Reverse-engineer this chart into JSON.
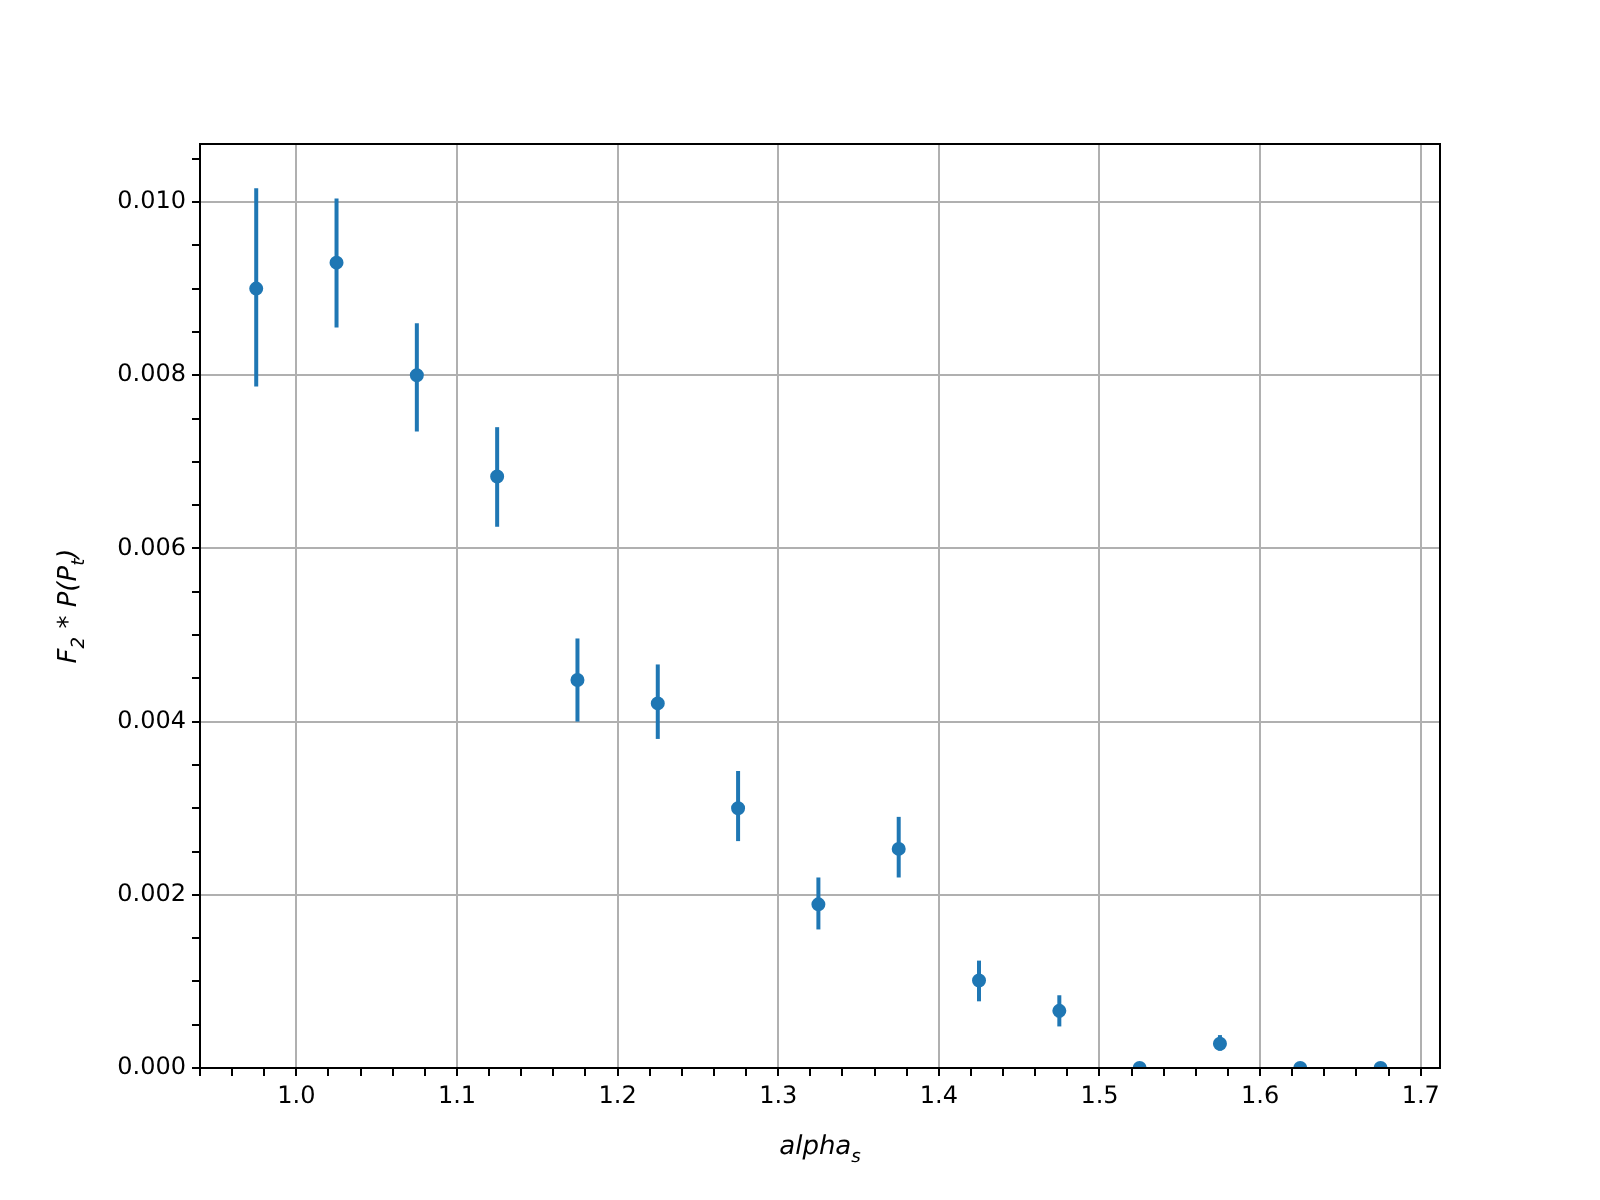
{
  "chart_data": {
    "type": "scatter",
    "xlabel": "alpha$_{s}$",
    "ylabel": "F$_{2}$ * P(P$_{t}$)",
    "x": [
      0.975,
      1.025,
      1.075,
      1.125,
      1.175,
      1.225,
      1.275,
      1.325,
      1.375,
      1.425,
      1.475,
      1.525,
      1.575,
      1.625,
      1.675
    ],
    "series": [
      {
        "color": "#1f77b4",
        "values": [
          0.009,
          0.0093,
          0.008,
          0.00683,
          0.00448,
          0.00421,
          0.003,
          0.00189,
          0.00253,
          0.00101,
          0.00066,
          0.0,
          0.00028,
          0.0,
          0.0
        ],
        "errors": [
          [
            0.00787,
            0.01016
          ],
          [
            0.00855,
            0.01004
          ],
          [
            0.00735,
            0.0086
          ],
          [
            0.00625,
            0.0074
          ],
          [
            0.004,
            0.00496
          ],
          [
            0.0038,
            0.00466
          ],
          [
            0.00262,
            0.00343
          ],
          [
            0.0016,
            0.0022
          ],
          [
            0.0022,
            0.0029
          ],
          [
            0.00077,
            0.00124
          ],
          [
            0.00048,
            0.00084
          ],
          null,
          [
            0.0002,
            0.00038
          ],
          null,
          null
        ]
      }
    ],
    "marker": "circle",
    "grid": true,
    "legend": false,
    "xlim": [
      0.94,
      1.712
    ],
    "ylim": [
      0,
      0.01067
    ],
    "xticks": [
      {
        "value": 1.0,
        "label": "1.0"
      },
      {
        "value": 1.1,
        "label": "1.1"
      },
      {
        "value": 1.2,
        "label": "1.2"
      },
      {
        "value": 1.3,
        "label": "1.3"
      },
      {
        "value": 1.4,
        "label": "1.4"
      },
      {
        "value": 1.5,
        "label": "1.5"
      },
      {
        "value": 1.6,
        "label": "1.6"
      },
      {
        "value": 1.7,
        "label": "1.7"
      }
    ],
    "yticks": [
      {
        "value": 0,
        "label": "0.000"
      },
      {
        "value": 0.002,
        "label": "0.002"
      },
      {
        "value": 0.004,
        "label": "0.004"
      },
      {
        "value": 0.006,
        "label": "0.006"
      },
      {
        "value": 0.008,
        "label": "0.008"
      },
      {
        "value": 0.01,
        "label": "0.010"
      }
    ]
  }
}
